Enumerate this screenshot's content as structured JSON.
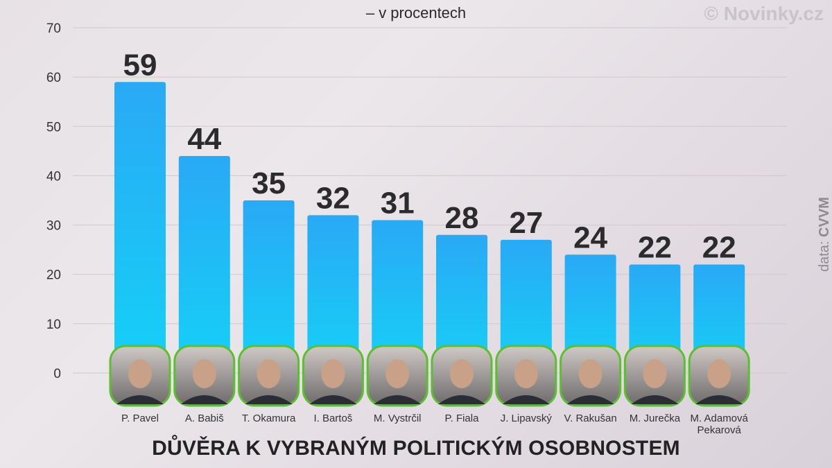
{
  "brand": "© Novinky.cz",
  "source": {
    "prefix": "data: ",
    "name": "CVVM"
  },
  "chart_data": {
    "type": "bar",
    "title": "DŮVĚRA K VYBRANÝM POLITICKÝM OSOBNOSTEM",
    "subtitle": "– v procentech",
    "categories": [
      "P. Pavel",
      "A. Babiš",
      "T. Okamura",
      "I. Bartoš",
      "M. Vystrčil",
      "P. Fiala",
      "J. Lipavský",
      "V. Rakušan",
      "M. Jurečka",
      "M. Adamová Pekarová"
    ],
    "values": [
      59,
      44,
      35,
      32,
      31,
      28,
      27,
      24,
      22,
      22
    ],
    "ylim": [
      0,
      70
    ],
    "yticks": [
      0,
      10,
      20,
      30,
      40,
      50,
      60,
      70
    ],
    "grid": true,
    "bar_color": "#2aa9f5",
    "avatar_border_color": "#5bbf2f"
  }
}
